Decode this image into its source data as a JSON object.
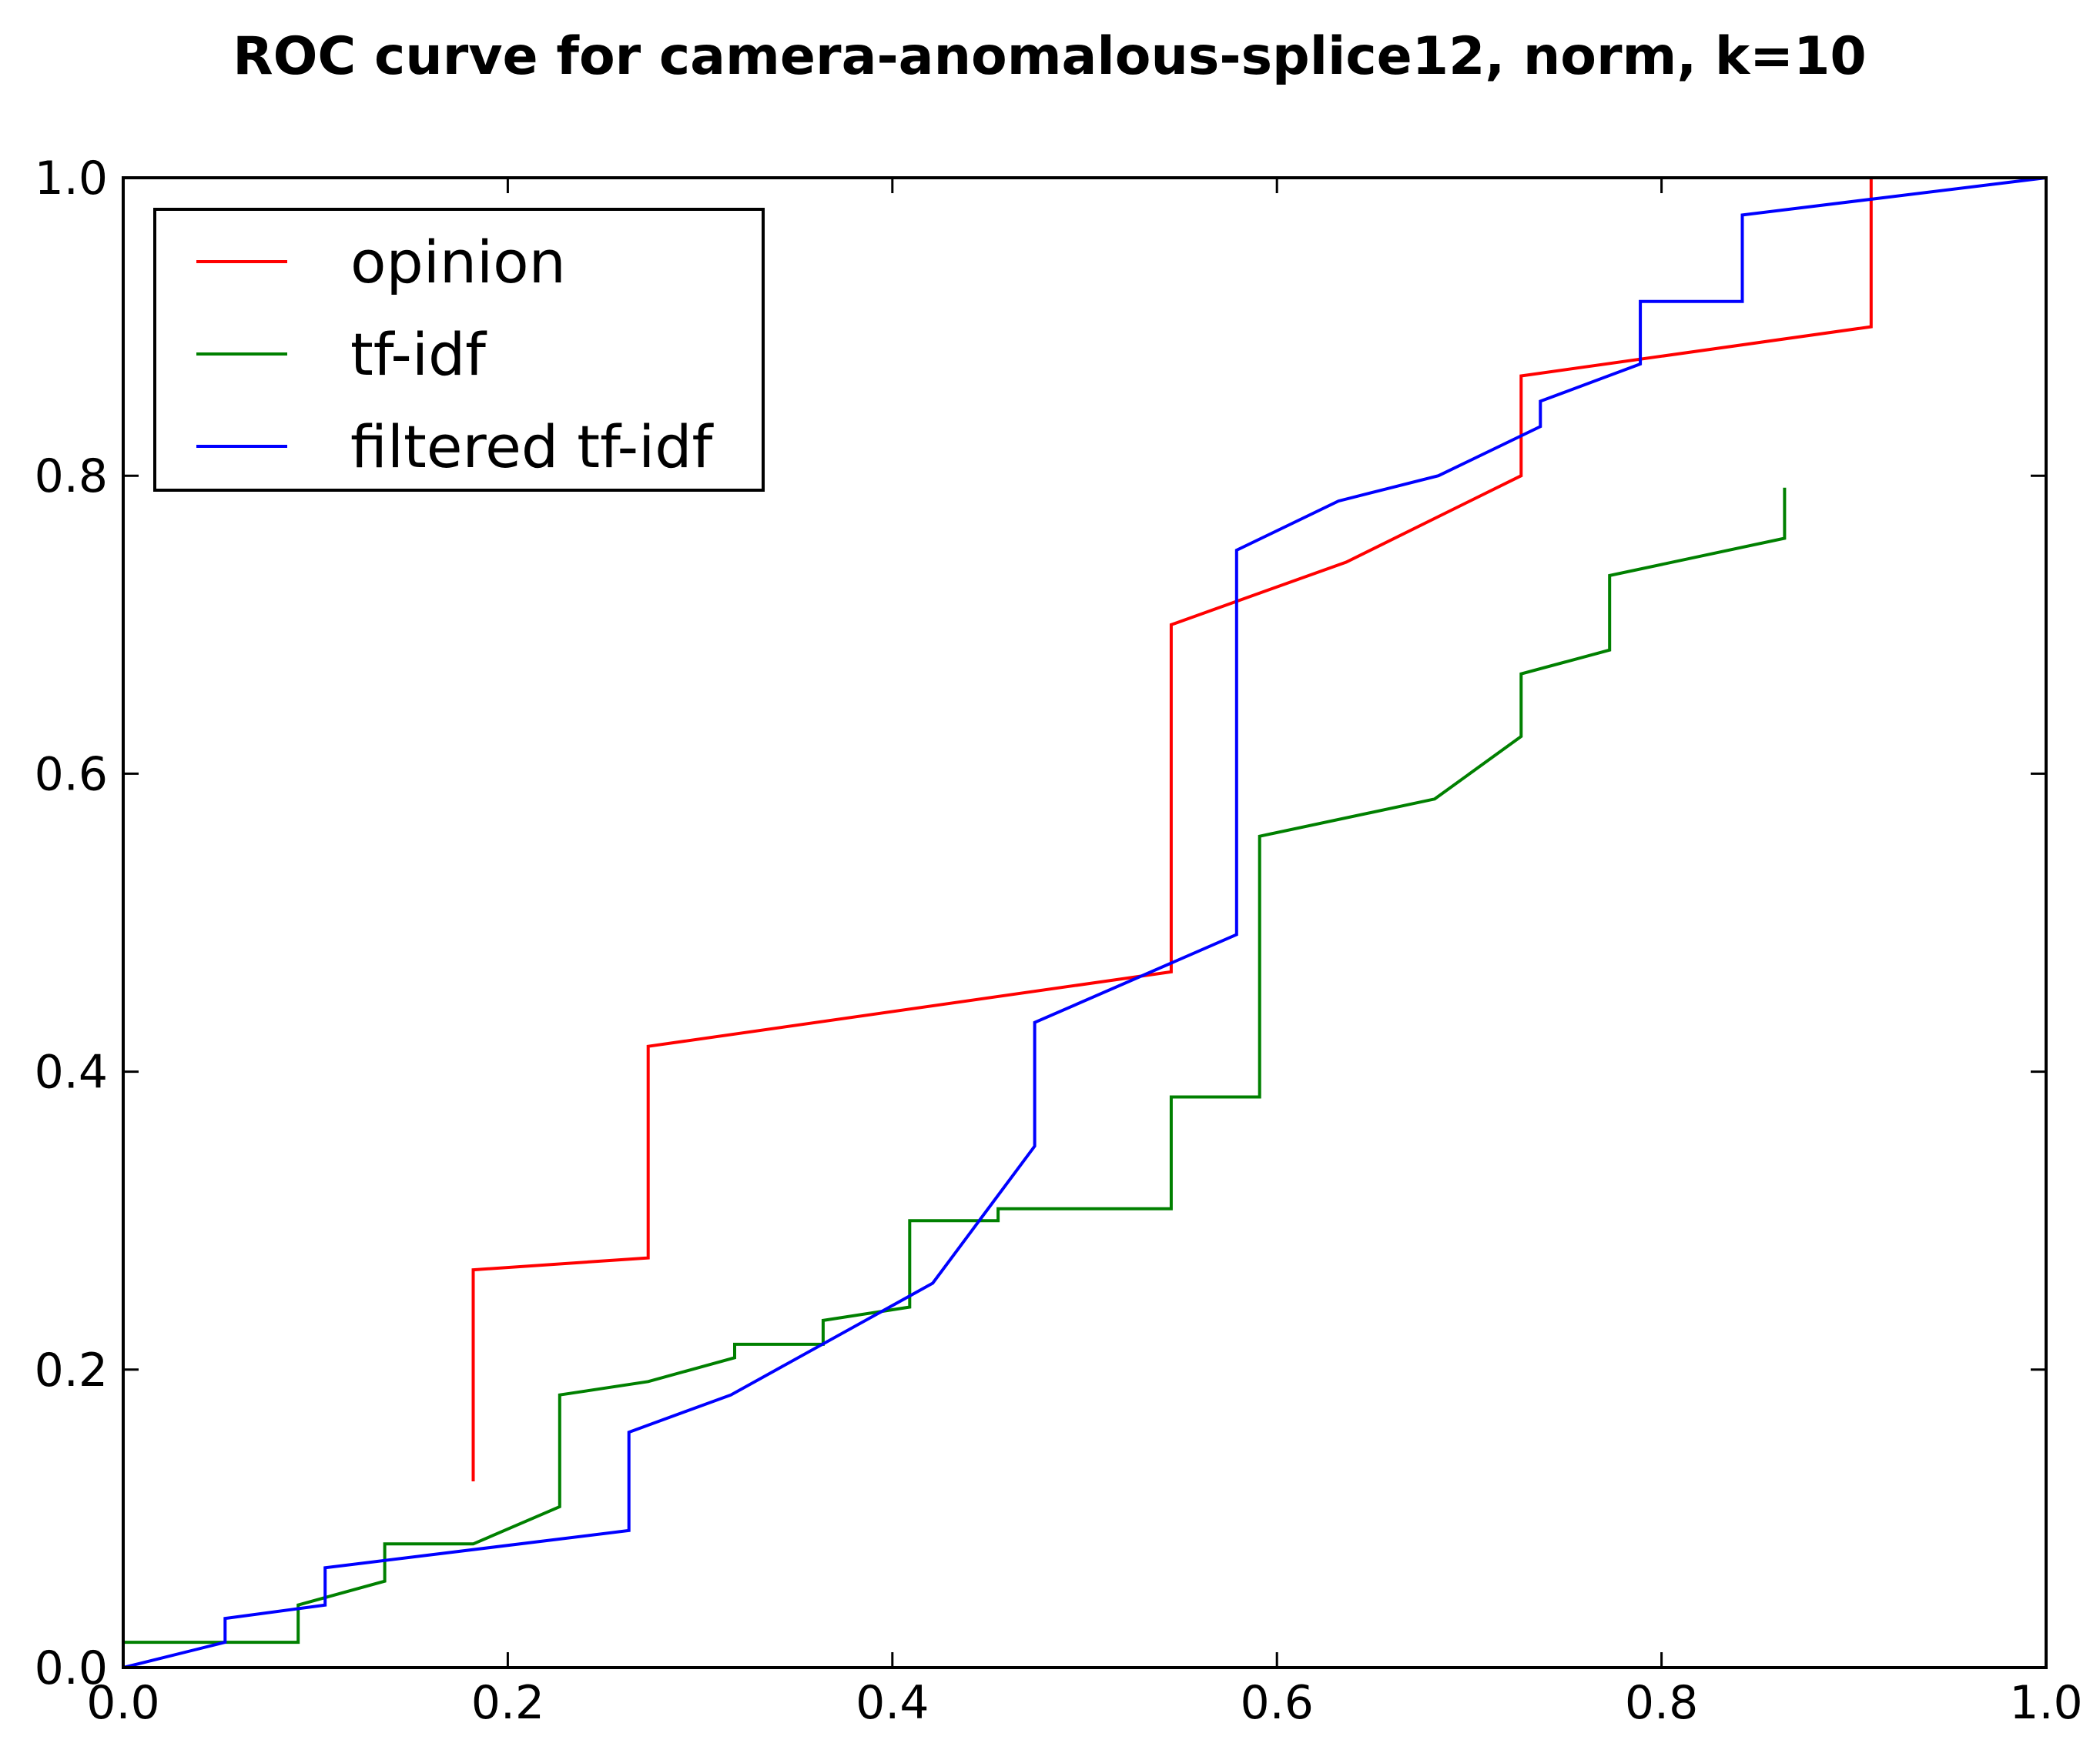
{
  "chart_data": {
    "type": "line",
    "title": "ROC curve for camera-anomalous-splice12, norm, k=10",
    "xlabel": "",
    "ylabel": "",
    "xlim": [
      0.0,
      1.0
    ],
    "ylim": [
      0.0,
      1.0
    ],
    "xticks": [
      "0.0",
      "0.2",
      "0.4",
      "0.6",
      "0.8",
      "1.0"
    ],
    "yticks": [
      "0.0",
      "0.2",
      "0.4",
      "0.6",
      "0.8",
      "1.0"
    ],
    "grid": false,
    "legend_position": "top-left",
    "series": [
      {
        "name": "opinion",
        "color": "#ff0000",
        "points": [
          [
            0.182,
            0.125
          ],
          [
            0.182,
            0.267
          ],
          [
            0.273,
            0.275
          ],
          [
            0.273,
            0.417
          ],
          [
            0.545,
            0.467
          ],
          [
            0.545,
            0.7
          ],
          [
            0.636,
            0.742
          ],
          [
            0.727,
            0.8
          ],
          [
            0.727,
            0.867
          ],
          [
            0.909,
            0.9
          ],
          [
            0.909,
            1.0
          ],
          [
            1.0,
            1.0
          ]
        ]
      },
      {
        "name": "tf-idf",
        "color": "#008000",
        "points": [
          [
            0.0,
            0.017
          ],
          [
            0.091,
            0.017
          ],
          [
            0.091,
            0.042
          ],
          [
            0.136,
            0.058
          ],
          [
            0.136,
            0.083
          ],
          [
            0.182,
            0.083
          ],
          [
            0.227,
            0.108
          ],
          [
            0.227,
            0.183
          ],
          [
            0.273,
            0.192
          ],
          [
            0.318,
            0.208
          ],
          [
            0.318,
            0.217
          ],
          [
            0.364,
            0.217
          ],
          [
            0.364,
            0.233
          ],
          [
            0.409,
            0.242
          ],
          [
            0.409,
            0.3
          ],
          [
            0.455,
            0.3
          ],
          [
            0.455,
            0.308
          ],
          [
            0.545,
            0.308
          ],
          [
            0.545,
            0.383
          ],
          [
            0.591,
            0.383
          ],
          [
            0.591,
            0.558
          ],
          [
            0.682,
            0.583
          ],
          [
            0.727,
            0.625
          ],
          [
            0.727,
            0.667
          ],
          [
            0.773,
            0.683
          ],
          [
            0.773,
            0.733
          ],
          [
            0.864,
            0.758
          ],
          [
            0.864,
            0.792
          ]
        ]
      },
      {
        "name": "filtered tf-idf",
        "color": "#0000ff",
        "points": [
          [
            0.0,
            0.0
          ],
          [
            0.053,
            0.017
          ],
          [
            0.053,
            0.033
          ],
          [
            0.105,
            0.042
          ],
          [
            0.105,
            0.067
          ],
          [
            0.263,
            0.092
          ],
          [
            0.263,
            0.158
          ],
          [
            0.316,
            0.183
          ],
          [
            0.421,
            0.258
          ],
          [
            0.474,
            0.35
          ],
          [
            0.474,
            0.433
          ],
          [
            0.579,
            0.492
          ],
          [
            0.579,
            0.75
          ],
          [
            0.632,
            0.783
          ],
          [
            0.684,
            0.8
          ],
          [
            0.737,
            0.833
          ],
          [
            0.737,
            0.85
          ],
          [
            0.789,
            0.875
          ],
          [
            0.789,
            0.917
          ],
          [
            0.842,
            0.917
          ],
          [
            0.842,
            0.975
          ],
          [
            1.0,
            1.0
          ]
        ]
      }
    ]
  }
}
